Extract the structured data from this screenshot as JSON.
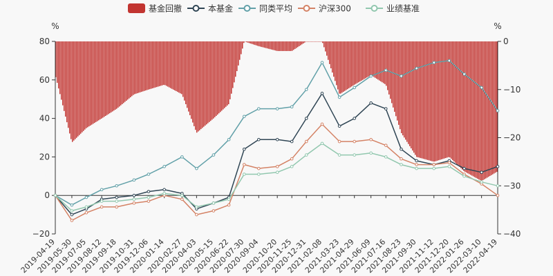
{
  "chart_data": {
    "type": "line",
    "legend": {
      "position": "top-center",
      "items": [
        {
          "label": "基金回撤",
          "color": "#c23531",
          "kind": "bar"
        },
        {
          "label": "本基金",
          "color": "#2f4554",
          "kind": "line"
        },
        {
          "label": "同类平均",
          "color": "#61a0a8",
          "kind": "line"
        },
        {
          "label": "沪深300",
          "color": "#d48265",
          "kind": "line"
        },
        {
          "label": "业绩基准",
          "color": "#91c7ae",
          "kind": "line"
        }
      ]
    },
    "y_left": {
      "unit_label": "%",
      "min": -20,
      "max": 80,
      "ticks": [
        "80",
        "60",
        "40",
        "20",
        "0",
        "−20"
      ]
    },
    "y_right": {
      "unit_label": "%",
      "min": -40,
      "max": 0,
      "ticks": [
        "0",
        "−10",
        "−20",
        "−30",
        "−40"
      ]
    },
    "x_tick_labels": [
      "2019-04-19",
      "2019-05-30",
      "2019-07-05",
      "2019-08-12",
      "2019-09-18",
      "2019-10-31",
      "2019-12-06",
      "2020-01-14",
      "2020-02-27",
      "2020-04-03",
      "2020-05-15",
      "2020-06-22",
      "2020-07-30",
      "2020-09-04",
      "2020-10-20",
      "2020-11-25",
      "2020-12-31",
      "2021-02-08",
      "2021-03-23",
      "2021-04-29",
      "2021-06-09",
      "2021-07-16",
      "2021-08-23",
      "2021-09-30",
      "2021-11-12",
      "2021-12-20",
      "2022-01-26",
      "2022-03-10",
      "2022-04-19"
    ],
    "series": [
      {
        "name": "本基金",
        "axis": "left",
        "x": [
          "2019-04-19",
          "2019-05-30",
          "2019-07-05",
          "2019-08-12",
          "2019-09-18",
          "2019-10-31",
          "2019-12-06",
          "2020-01-14",
          "2020-02-27",
          "2020-04-03",
          "2020-05-15",
          "2020-06-22",
          "2020-07-30",
          "2020-09-04",
          "2020-10-20",
          "2020-11-25",
          "2020-12-31",
          "2021-02-08",
          "2021-03-23",
          "2021-04-29",
          "2021-06-09",
          "2021-07-16",
          "2021-08-23",
          "2021-09-30",
          "2021-11-12",
          "2021-12-20",
          "2022-01-26",
          "2022-03-10",
          "2022-04-19"
        ],
        "y": [
          0,
          -10,
          -7,
          -2,
          -1,
          0,
          2,
          3,
          1,
          -7,
          -4,
          -1,
          24,
          29,
          29,
          28,
          40,
          53,
          36,
          40,
          48,
          45,
          24,
          18,
          16,
          18,
          14,
          12,
          15
        ]
      },
      {
        "name": "同类平均",
        "axis": "left",
        "x": [
          "2019-04-19",
          "2019-05-30",
          "2019-07-05",
          "2019-08-12",
          "2019-09-18",
          "2019-10-31",
          "2019-12-06",
          "2020-01-14",
          "2020-02-27",
          "2020-04-03",
          "2020-05-15",
          "2020-06-22",
          "2020-07-30",
          "2020-09-04",
          "2020-10-20",
          "2020-11-25",
          "2020-12-31",
          "2021-02-08",
          "2021-03-23",
          "2021-04-29",
          "2021-06-09",
          "2021-07-16",
          "2021-08-23",
          "2021-09-30",
          "2021-11-12",
          "2021-12-20",
          "2022-01-26",
          "2022-03-10",
          "2022-04-19"
        ],
        "y": [
          0,
          -5,
          -1,
          3,
          5,
          8,
          11,
          15,
          20,
          14,
          21,
          29,
          41,
          45,
          45,
          46,
          55,
          69,
          51,
          56,
          62,
          65,
          62,
          66,
          69,
          70,
          63,
          56,
          44
        ]
      },
      {
        "name": "沪深300",
        "axis": "left",
        "x": [
          "2019-04-19",
          "2019-05-30",
          "2019-07-05",
          "2019-08-12",
          "2019-09-18",
          "2019-10-31",
          "2019-12-06",
          "2020-01-14",
          "2020-02-27",
          "2020-04-03",
          "2020-05-15",
          "2020-06-22",
          "2020-07-30",
          "2020-09-04",
          "2020-10-20",
          "2020-11-25",
          "2020-12-31",
          "2021-02-08",
          "2021-03-23",
          "2021-04-29",
          "2021-06-09",
          "2021-07-16",
          "2021-08-23",
          "2021-09-30",
          "2021-11-12",
          "2021-12-20",
          "2022-01-26",
          "2022-03-10",
          "2022-04-19"
        ],
        "y": [
          0,
          -13,
          -9,
          -6,
          -6,
          -4,
          -3,
          0,
          -2,
          -10,
          -8,
          -5,
          16,
          14,
          15,
          19,
          28,
          37,
          28,
          28,
          29,
          26,
          19,
          16,
          16,
          17,
          11,
          6,
          0
        ]
      },
      {
        "name": "业绩基准",
        "axis": "left",
        "x": [
          "2019-04-19",
          "2019-05-30",
          "2019-07-05",
          "2019-08-12",
          "2019-09-18",
          "2019-10-31",
          "2019-12-06",
          "2020-01-14",
          "2020-02-27",
          "2020-04-03",
          "2020-05-15",
          "2020-06-22",
          "2020-07-30",
          "2020-09-04",
          "2020-10-20",
          "2020-11-25",
          "2020-12-31",
          "2021-02-08",
          "2021-03-23",
          "2021-04-29",
          "2021-06-09",
          "2021-07-16",
          "2021-08-23",
          "2021-09-30",
          "2021-11-12",
          "2021-12-20",
          "2022-01-26",
          "2022-03-10",
          "2022-04-19"
        ],
        "y": [
          0,
          -8,
          -6,
          -3,
          -3,
          -2,
          -1,
          1,
          0,
          -6,
          -4,
          -2,
          11,
          11,
          12,
          15,
          21,
          27,
          21,
          21,
          22,
          20,
          16,
          14,
          14,
          15,
          10,
          7,
          5
        ]
      },
      {
        "name": "基金回撤",
        "axis": "right",
        "type": "bar",
        "x": [
          "2019-04-19",
          "2019-05-30",
          "2019-07-05",
          "2019-08-12",
          "2019-09-18",
          "2019-10-31",
          "2019-12-06",
          "2020-01-14",
          "2020-02-27",
          "2020-04-03",
          "2020-05-15",
          "2020-06-22",
          "2020-07-30",
          "2020-09-04",
          "2020-10-20",
          "2020-11-25",
          "2020-12-31",
          "2021-02-08",
          "2021-03-23",
          "2021-04-29",
          "2021-06-09",
          "2021-07-16",
          "2021-08-23",
          "2021-09-30",
          "2021-11-12",
          "2021-12-20",
          "2022-01-26",
          "2022-03-10",
          "2022-04-19"
        ],
        "y": [
          -7,
          -21,
          -18,
          -16,
          -14,
          -11,
          -10,
          -9,
          -11,
          -19,
          -16,
          -13,
          0,
          -1,
          -2,
          -2,
          0,
          0,
          -11,
          -9,
          -7,
          -9,
          -19,
          -24,
          -25,
          -24,
          -27,
          -29,
          -27
        ]
      }
    ]
  }
}
